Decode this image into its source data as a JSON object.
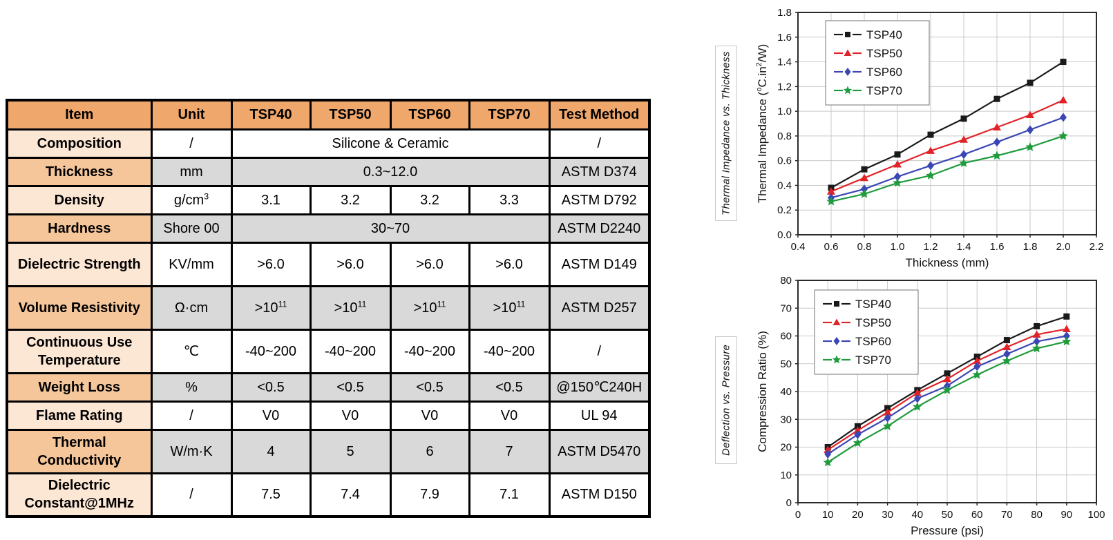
{
  "page": {
    "background": "#ffffff"
  },
  "table": {
    "columns": [
      "Item",
      "Unit",
      "TSP40",
      "TSP50",
      "TSP60",
      "TSP70",
      "Test Method"
    ],
    "header_bg": "#F0A76C",
    "item_bg_light": "#FCE6D4",
    "item_bg_medium": "#F6C69B",
    "row_bg_white": "#FFFFFF",
    "row_bg_gray": "#D9D9D9",
    "rows": [
      {
        "item": "Composition",
        "unit": "/",
        "merged": "Silicone & Ceramic",
        "test": "/",
        "band": "white",
        "tall": false
      },
      {
        "item": "Thickness",
        "unit": "mm",
        "merged": "0.3~12.0",
        "test": "ASTM D374",
        "band": "gray",
        "tall": false
      },
      {
        "item": "Density",
        "unit": "g/cm^{3}",
        "values": [
          "3.1",
          "3.2",
          "3.2",
          "3.3"
        ],
        "test": "ASTM D792",
        "band": "white",
        "tall": false
      },
      {
        "item": "Hardness",
        "unit": "Shore 00",
        "merged": "30~70",
        "test": "ASTM D2240",
        "band": "gray",
        "tall": false
      },
      {
        "item": "Dielectric Strength",
        "unit": "KV/mm",
        "values": [
          ">6.0",
          ">6.0",
          ">6.0",
          ">6.0"
        ],
        "test": "ASTM D149",
        "band": "white",
        "tall": true
      },
      {
        "item": "Volume Resistivity",
        "unit": "Ω·cm",
        "values": [
          ">10^{11}",
          ">10^{11}",
          ">10^{11}",
          ">10^{11}"
        ],
        "test": "ASTM D257",
        "band": "gray",
        "tall": true
      },
      {
        "item": "Continuous Use Temperature",
        "unit": "℃",
        "values": [
          "-40~200",
          "-40~200",
          "-40~200",
          "-40~200"
        ],
        "test": "/",
        "band": "white",
        "tall": true
      },
      {
        "item": "Weight Loss",
        "unit": "%",
        "values": [
          "<0.5",
          "<0.5",
          "<0.5",
          "<0.5"
        ],
        "test": "@150℃240H",
        "band": "gray",
        "tall": false
      },
      {
        "item": "Flame Rating",
        "unit": "/",
        "values": [
          "V0",
          "V0",
          "V0",
          "V0"
        ],
        "test": "UL 94",
        "band": "white",
        "tall": false
      },
      {
        "item": "Thermal Conductivity",
        "unit": "W/m·K",
        "values": [
          "4",
          "5",
          "6",
          "7"
        ],
        "test": "ASTM D5470",
        "band": "gray",
        "tall": true
      },
      {
        "item": "Dielectric Constant@1MHz",
        "unit": "/",
        "values": [
          "7.5",
          "7.4",
          "7.9",
          "7.1"
        ],
        "test": "ASTM D150",
        "band": "white",
        "tall": true
      }
    ]
  },
  "chart_data": [
    {
      "type": "line",
      "side_label": "Thermal Impedance vs. Thickness",
      "xlabel": "Thickness (mm)",
      "ylabel": "Thermal Impedance (^{o}C.in^{2}/W)",
      "xlim": [
        0.4,
        2.2
      ],
      "ylim": [
        0.0,
        1.8
      ],
      "xtick_labels": [
        "0.4",
        "0.6",
        "0.8",
        "1.0",
        "1.2",
        "1.4",
        "1.6",
        "1.8",
        "2.0",
        "2.2"
      ],
      "ytick_labels": [
        "0.0",
        "0.2",
        "0.4",
        "0.6",
        "0.8",
        "1.0",
        "1.2",
        "1.4",
        "1.6",
        "1.8"
      ],
      "grid": true,
      "legend_position": "top-left",
      "x": [
        0.6,
        0.8,
        1.0,
        1.2,
        1.4,
        1.6,
        1.8,
        2.0
      ],
      "series": [
        {
          "name": "TSP40",
          "color": "#1a1a1a",
          "marker": "square",
          "values": [
            0.38,
            0.53,
            0.65,
            0.81,
            0.94,
            1.1,
            1.23,
            1.4
          ]
        },
        {
          "name": "TSP50",
          "color": "#e12328",
          "marker": "triangle",
          "values": [
            0.35,
            0.46,
            0.57,
            0.68,
            0.77,
            0.87,
            0.97,
            1.09
          ]
        },
        {
          "name": "TSP60",
          "color": "#3a46b4",
          "marker": "diamond",
          "values": [
            0.3,
            0.37,
            0.47,
            0.56,
            0.65,
            0.75,
            0.85,
            0.95
          ]
        },
        {
          "name": "TSP70",
          "color": "#1f9b3c",
          "marker": "star",
          "values": [
            0.27,
            0.33,
            0.42,
            0.48,
            0.58,
            0.64,
            0.71,
            0.8
          ]
        }
      ]
    },
    {
      "type": "line",
      "side_label": "Deflection vs. Pressure",
      "xlabel": "Pressure (psi)",
      "ylabel": "Compression Ratio (%)",
      "xlim": [
        0,
        100
      ],
      "ylim": [
        0,
        80
      ],
      "xtick_labels": [
        "0",
        "10",
        "20",
        "30",
        "40",
        "50",
        "60",
        "70",
        "80",
        "90",
        "100"
      ],
      "ytick_labels": [
        "0",
        "10",
        "20",
        "30",
        "40",
        "50",
        "60",
        "70",
        "80"
      ],
      "grid": true,
      "legend_position": "top-left",
      "x": [
        10,
        20,
        30,
        40,
        50,
        60,
        70,
        80,
        90
      ],
      "series": [
        {
          "name": "TSP40",
          "color": "#1a1a1a",
          "marker": "square",
          "values": [
            20.0,
            27.5,
            34.0,
            40.5,
            46.5,
            52.5,
            58.5,
            63.5,
            67.0
          ]
        },
        {
          "name": "TSP50",
          "color": "#e12328",
          "marker": "triangle",
          "values": [
            19.0,
            26.0,
            32.5,
            39.5,
            44.5,
            51.0,
            56.0,
            60.5,
            62.5
          ]
        },
        {
          "name": "TSP60",
          "color": "#3a46b4",
          "marker": "diamond",
          "values": [
            17.5,
            24.5,
            30.5,
            37.5,
            42.0,
            49.0,
            53.5,
            58.0,
            60.0
          ]
        },
        {
          "name": "TSP70",
          "color": "#1f9b3c",
          "marker": "star",
          "values": [
            14.5,
            21.5,
            27.5,
            34.5,
            40.5,
            46.0,
            51.0,
            55.5,
            58.0
          ]
        }
      ]
    }
  ]
}
